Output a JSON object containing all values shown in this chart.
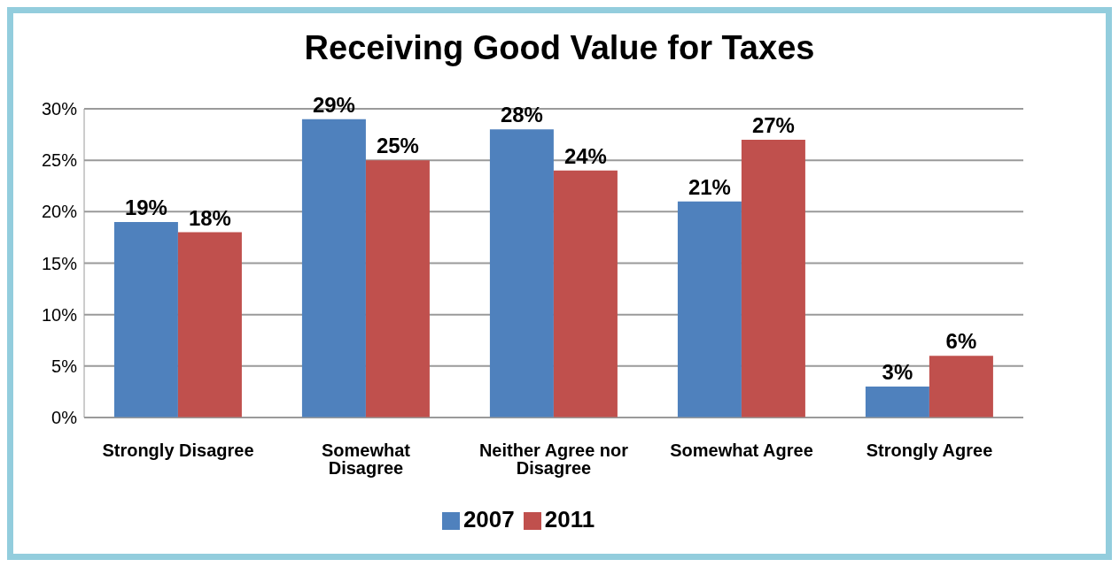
{
  "chart_data": {
    "type": "bar",
    "title": "Receiving Good Value for Taxes",
    "categories": [
      "Strongly Disagree",
      "Somewhat Disagree",
      "Neither Agree nor Disagree",
      "Somewhat Agree",
      "Strongly Agree"
    ],
    "series": [
      {
        "name": "2007",
        "color": "#4f81bd",
        "values": [
          19,
          29,
          28,
          21,
          3
        ],
        "value_labels": [
          "19%",
          "29%",
          "28%",
          "21%",
          "3%"
        ]
      },
      {
        "name": "2011",
        "color": "#c0504d",
        "values": [
          18,
          25,
          24,
          27,
          6
        ],
        "value_labels": [
          "18%",
          "25%",
          "24%",
          "27%",
          "6%"
        ]
      }
    ],
    "ylim": [
      0,
      30
    ],
    "yticks": [
      {
        "value": 0,
        "label": "0%"
      },
      {
        "value": 5,
        "label": "5%"
      },
      {
        "value": 10,
        "label": "10%"
      },
      {
        "value": 15,
        "label": "15%"
      },
      {
        "value": 20,
        "label": "20%"
      },
      {
        "value": 25,
        "label": "25%"
      },
      {
        "value": 30,
        "label": "30%"
      }
    ],
    "grid": "y",
    "legend": "bottom"
  }
}
